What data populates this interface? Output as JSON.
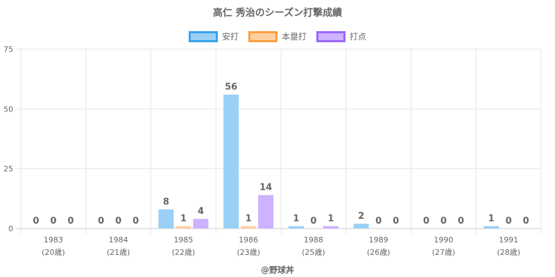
{
  "chart_data": {
    "type": "bar",
    "title": "高仁 秀治のシーズン打撃成績",
    "categories": [
      "1983",
      "1984",
      "1985",
      "1986",
      "1988",
      "1989",
      "1990",
      "1991"
    ],
    "category_sublabels": [
      "(20歳)",
      "(21歳)",
      "(22歳)",
      "(23歳)",
      "(25歳)",
      "(26歳)",
      "(27歳)",
      "(28歳)"
    ],
    "series": [
      {
        "name": "安打",
        "values": [
          0,
          0,
          8,
          56,
          1,
          2,
          0,
          1
        ],
        "fill": "#9ad0f5",
        "stroke": "#36a2eb"
      },
      {
        "name": "本塁打",
        "values": [
          0,
          0,
          1,
          1,
          0,
          0,
          0,
          0
        ],
        "fill": "#ffcf9f",
        "stroke": "#ff9f40"
      },
      {
        "name": "打点",
        "values": [
          0,
          0,
          4,
          14,
          1,
          0,
          0,
          0
        ],
        "fill": "#ccb2ff",
        "stroke": "#9966ff"
      }
    ],
    "yticks": [
      0,
      25,
      50,
      75
    ],
    "ylim": [
      0,
      75
    ],
    "grid": true,
    "legend_position": "top"
  },
  "footer": "@野球丼"
}
